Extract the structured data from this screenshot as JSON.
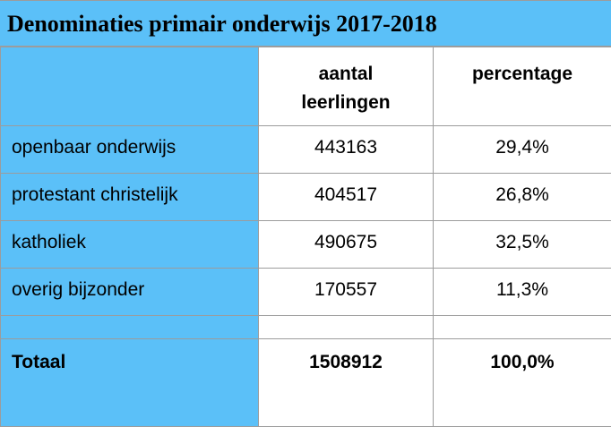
{
  "title": "Denominaties primair onderwijs 2017-2018",
  "columns": {
    "count_line1": "aantal",
    "count_line2": "leerlingen",
    "percentage": "percentage"
  },
  "rows": [
    {
      "label": "openbaar onderwijs",
      "count": "443163",
      "percentage": "29,4%"
    },
    {
      "label": "protestant christelijk",
      "count": "404517",
      "percentage": "26,8%"
    },
    {
      "label": "katholiek",
      "count": "490675",
      "percentage": "32,5%"
    },
    {
      "label": "overig bijzonder",
      "count": "170557",
      "percentage": "11,3%"
    }
  ],
  "total": {
    "label": "Totaal",
    "count": "1508912",
    "percentage": "100,0%"
  },
  "colors": {
    "header_bg": "#5bc0f8",
    "border": "#9c9c9c"
  }
}
